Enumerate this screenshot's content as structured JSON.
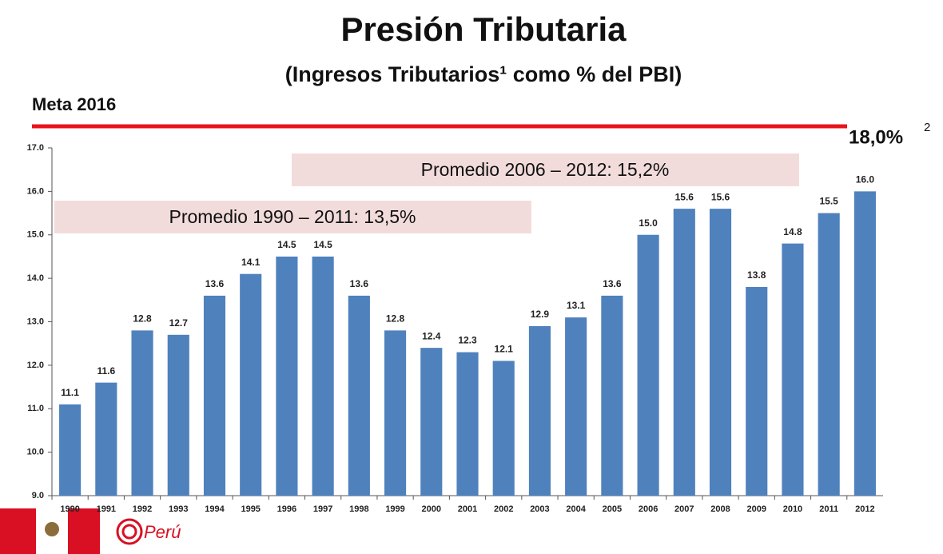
{
  "chart_data": {
    "type": "bar",
    "title": "Presión Tributaria",
    "subtitle": "(Ingresos Tributarios¹ como % del PBI)",
    "meta_label": "Meta 2016",
    "meta_value_label": "18,0%",
    "meta_footnote": "2",
    "annotations": [
      "Promedio 2006 – 2012: 15,2%",
      "Promedio 1990 – 2011: 13,5%"
    ],
    "logo_text": "Perú",
    "categories": [
      "1990",
      "1991",
      "1992",
      "1993",
      "1994",
      "1995",
      "1996",
      "1997",
      "1998",
      "1999",
      "2000",
      "2001",
      "2002",
      "2003",
      "2004",
      "2005",
      "2006",
      "2007",
      "2008",
      "2009",
      "2010",
      "2011",
      "2012"
    ],
    "values": [
      11.1,
      11.6,
      12.8,
      12.7,
      13.6,
      14.1,
      14.5,
      14.5,
      13.6,
      12.8,
      12.4,
      12.3,
      12.1,
      12.9,
      13.1,
      13.6,
      15.0,
      15.6,
      15.6,
      13.8,
      14.8,
      15.5,
      16.0
    ],
    "value_labels": [
      "11.1",
      "11.6",
      "12.8",
      "12.7",
      "13.6",
      "14.1",
      "14.5",
      "14.5",
      "13.6",
      "12.8",
      "12.4",
      "12.3",
      "12.1",
      "12.9",
      "13.1",
      "13.6",
      "15.0",
      "15.6",
      "15.6",
      "13.8",
      "14.8",
      "15.5",
      "16.0"
    ],
    "color": "#4f81bd",
    "ylim": [
      9,
      17
    ],
    "yticks": [
      {
        "value": 9,
        "label": "9.0"
      },
      {
        "value": 10,
        "label": "10.0"
      },
      {
        "value": 11,
        "label": "11.0"
      },
      {
        "value": 12,
        "label": "12.0"
      },
      {
        "value": 13,
        "label": "13.0"
      },
      {
        "value": 14,
        "label": "14.0"
      },
      {
        "value": 15,
        "label": "15.0"
      },
      {
        "value": 16,
        "label": "16.0"
      },
      {
        "value": 17,
        "label": "17.0"
      }
    ]
  }
}
